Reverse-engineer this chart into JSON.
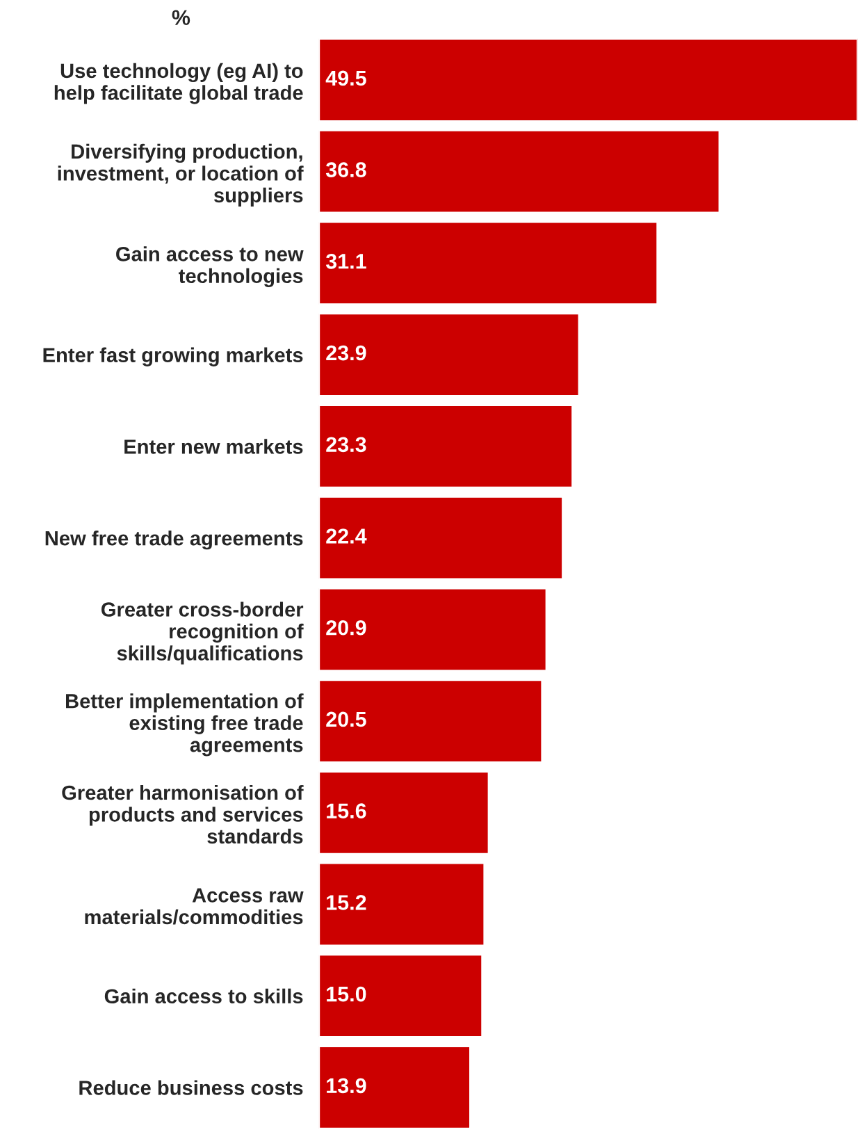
{
  "chart_data": {
    "type": "bar",
    "orientation": "horizontal",
    "xlabel": "%",
    "categories": [
      "Use technology (eg AI) to\nhelp facilitate global trade",
      "Diversifying production,\ninvestment, or location of\nsuppliers",
      "Gain access to new\ntechnologies",
      "Enter fast growing markets",
      "Enter new markets",
      "New free trade agreements",
      "Greater cross-border\nrecognition of\nskills/qualifications",
      "Better implementation of\nexisting free trade\nagreements",
      "Greater harmonisation of\nproducts and services\nstandards",
      "Access raw\nmaterials/commodities",
      "Gain access to skills",
      "Reduce business costs"
    ],
    "values": [
      49.5,
      36.8,
      31.1,
      23.9,
      23.3,
      22.4,
      20.9,
      20.5,
      15.6,
      15.2,
      15.0,
      13.9
    ],
    "value_labels": [
      "49.5",
      "36.8",
      "31.1",
      "23.9",
      "23.3",
      "22.4",
      "20.9",
      "20.5",
      "15.6",
      "15.2",
      "15.0",
      "13.9"
    ],
    "color": "#cc0000",
    "grid": false,
    "legend": false
  }
}
